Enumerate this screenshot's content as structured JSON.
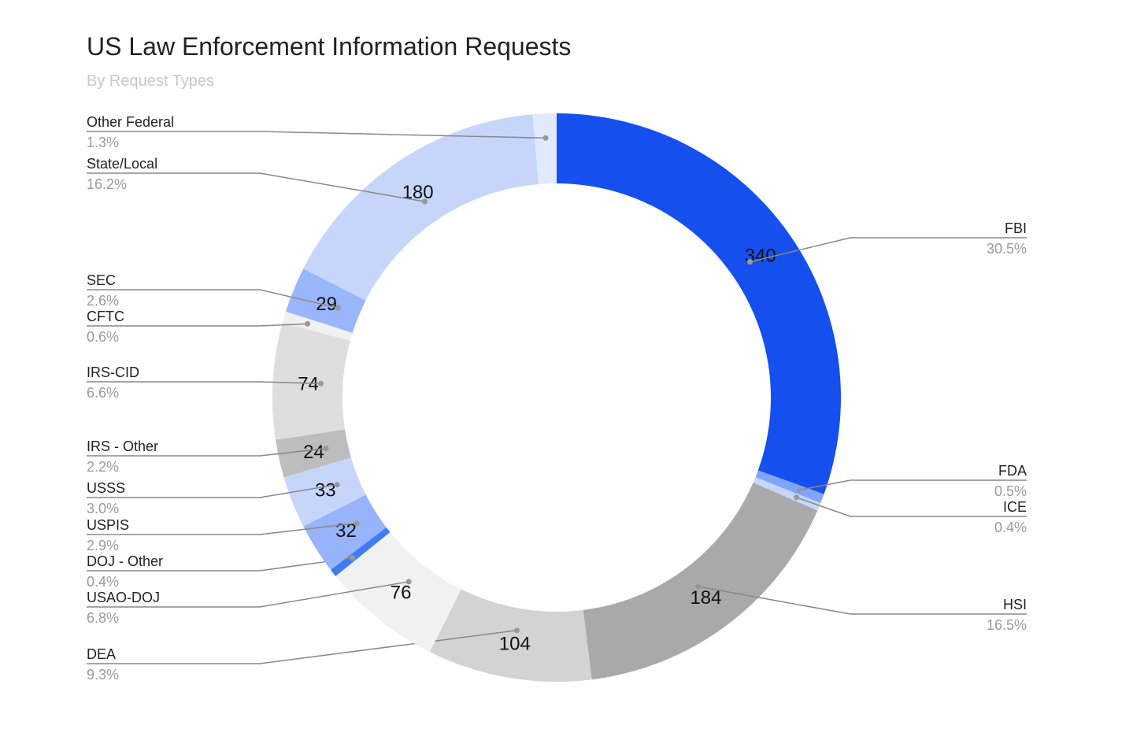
{
  "chart_data": {
    "type": "donut",
    "title": "US Law Enforcement Information Requests",
    "subtitle": "By Request Types",
    "categories": [
      "FBI",
      "FDA",
      "ICE",
      "HSI",
      "DEA",
      "USAO-DOJ",
      "DOJ - Other",
      "USPIS",
      "USSS",
      "IRS - Other",
      "IRS-CID",
      "CFTC",
      "SEC",
      "State/Local",
      "Other Federal"
    ],
    "values": [
      340,
      6,
      5,
      184,
      104,
      76,
      5,
      32,
      33,
      24,
      74,
      7,
      29,
      180,
      15
    ],
    "percent_labels": [
      "30.5%",
      "0.5%",
      "0.4%",
      "16.5%",
      "9.3%",
      "6.8%",
      "0.4%",
      "2.9%",
      "3.0%",
      "2.2%",
      "6.6%",
      "0.6%",
      "2.6%",
      "16.2%",
      "1.3%"
    ],
    "colors": [
      "#1550ee",
      "#7fa5f8",
      "#c5d5fb",
      "#a9a9a9",
      "#d3d3d3",
      "#f1f1f1",
      "#3e7bf5",
      "#97b3f9",
      "#c6d6fb",
      "#bdbdbd",
      "#dedede",
      "#f0f0f0",
      "#9ab6fa",
      "#c6d6fb",
      "#e1e9fd"
    ]
  }
}
